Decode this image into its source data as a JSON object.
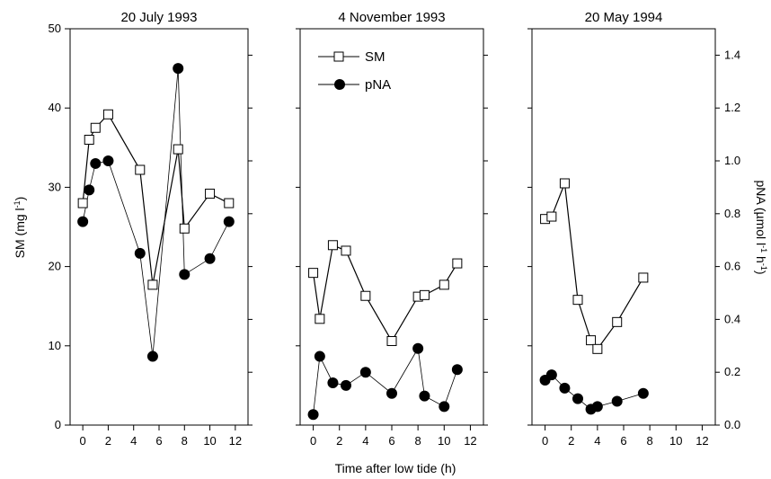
{
  "chart_data": {
    "type": "scatter",
    "xlabel": "Time after low tide (h)",
    "ylabel_left": "SM (mg l",
    "ylabel_left_sup": "-1",
    "ylabel_left_close": ")",
    "ylabel_right": "pNA (µmol l",
    "ylabel_right_sup1": "-1",
    "ylabel_right_mid": " h",
    "ylabel_right_sup2": "-1",
    "ylabel_right_close": ")",
    "xlim": [
      -1,
      13
    ],
    "ylim_left": [
      0,
      50
    ],
    "ylim_right": [
      0,
      1.5
    ],
    "x_ticks": [
      "0",
      "2",
      "4",
      "6",
      "8",
      "10",
      "12"
    ],
    "y_left_ticks": [
      "0",
      "10",
      "20",
      "30",
      "40",
      "50"
    ],
    "y_right_ticks": [
      "0.0",
      "0.2",
      "0.4",
      "0.6",
      "0.8",
      "1.0",
      "1.2",
      "1.4"
    ],
    "legend": {
      "placement": "top-left of middle panel",
      "items": [
        {
          "label": "SM",
          "marker": "open-square"
        },
        {
          "label": "pNA",
          "marker": "filled-circle"
        }
      ]
    },
    "panels": [
      {
        "title": "20 July 1993",
        "sm": {
          "x": [
            0,
            0.5,
            1,
            2,
            4.5,
            5.5,
            7.5,
            8,
            10,
            11.5
          ],
          "y": [
            28,
            36,
            37.5,
            39.2,
            32.2,
            17.7,
            34.8,
            24.8,
            29.2,
            28
          ]
        },
        "pna": {
          "x": [
            0,
            0.5,
            1,
            2,
            4.5,
            5.5,
            7.5,
            8,
            10,
            11.5
          ],
          "y": [
            0.77,
            0.89,
            0.99,
            1.0,
            0.65,
            0.26,
            1.35,
            0.57,
            0.63,
            0.77
          ]
        }
      },
      {
        "title": "4 November 1993",
        "sm": {
          "x": [
            0,
            0.5,
            1.5,
            2.5,
            4,
            6,
            8,
            8.5,
            10,
            11
          ],
          "y": [
            19.2,
            13.4,
            22.7,
            22.0,
            16.3,
            10.6,
            16.2,
            16.4,
            17.7,
            20.4
          ]
        },
        "pna": {
          "x": [
            0,
            0.5,
            1.5,
            2.5,
            4,
            6,
            8,
            8.5,
            10,
            11
          ],
          "y": [
            0.04,
            0.26,
            0.16,
            0.15,
            0.2,
            0.12,
            0.29,
            0.11,
            0.07,
            0.21
          ]
        }
      },
      {
        "title": "20 May 1994",
        "sm": {
          "x": [
            0,
            0.5,
            1.5,
            2.5,
            3.5,
            4,
            5.5,
            7.5
          ],
          "y": [
            26,
            26.3,
            30.5,
            15.8,
            10.7,
            9.6,
            13.0,
            18.6
          ]
        },
        "pna": {
          "x": [
            0,
            0.5,
            1.5,
            2.5,
            3.5,
            4,
            5.5,
            7.5
          ],
          "y": [
            0.17,
            0.19,
            0.14,
            0.1,
            0.06,
            0.07,
            0.09,
            0.12
          ]
        }
      }
    ]
  }
}
